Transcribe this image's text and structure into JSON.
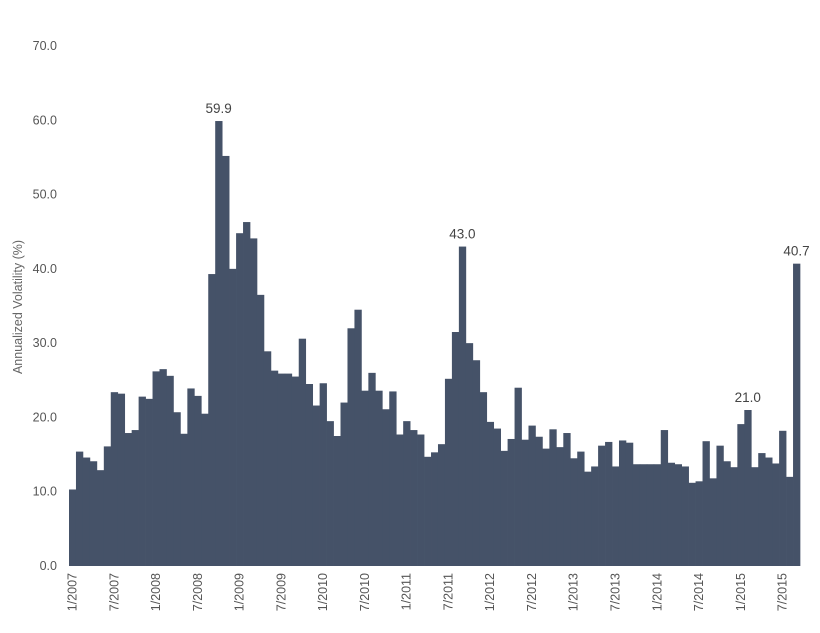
{
  "chart_data": {
    "type": "bar",
    "title": "",
    "xlabel": "",
    "ylabel": "Annualized Volatility (%)",
    "ylim": [
      0,
      70
    ],
    "yticks": [
      "0.0",
      "10.0",
      "20.0",
      "30.0",
      "40.0",
      "50.0",
      "60.0",
      "70.0"
    ],
    "grid": false,
    "legend": "none",
    "bar_color": "#455268",
    "x_start": "1/2007",
    "x_interval": "month",
    "xtick_labels": [
      "1/2007",
      "7/2007",
      "1/2008",
      "7/2008",
      "1/2009",
      "7/2009",
      "1/2010",
      "7/2010",
      "1/2011",
      "7/2011",
      "1/2012",
      "7/2012",
      "1/2013",
      "7/2013",
      "1/2014",
      "7/2014",
      "1/2015",
      "7/2015"
    ],
    "values": [
      10.3,
      15.4,
      14.6,
      14.1,
      12.9,
      16.1,
      23.4,
      23.2,
      17.9,
      18.3,
      22.8,
      22.5,
      26.2,
      26.5,
      25.6,
      20.7,
      17.8,
      23.9,
      22.9,
      20.5,
      39.3,
      59.9,
      55.2,
      40.0,
      44.8,
      46.3,
      44.1,
      36.5,
      28.9,
      26.3,
      25.9,
      25.9,
      25.5,
      30.6,
      24.5,
      21.6,
      24.6,
      19.5,
      17.5,
      22.0,
      32.0,
      34.5,
      23.6,
      26.0,
      23.6,
      21.1,
      23.5,
      17.7,
      19.5,
      18.3,
      17.7,
      14.7,
      15.3,
      16.4,
      25.2,
      31.5,
      43.0,
      30.0,
      27.7,
      23.4,
      19.4,
      18.5,
      15.5,
      17.1,
      24.0,
      17.0,
      18.9,
      17.4,
      15.8,
      18.4,
      16.0,
      17.9,
      14.5,
      15.4,
      12.7,
      13.4,
      16.2,
      16.7,
      13.4,
      16.9,
      16.6,
      13.7,
      13.7,
      13.7,
      13.7,
      18.3,
      13.9,
      13.7,
      13.4,
      11.2,
      11.4,
      16.8,
      11.8,
      16.2,
      14.1,
      13.3,
      19.1,
      21.0,
      13.3,
      15.2,
      14.6,
      13.8,
      18.2,
      12.0,
      40.7
    ],
    "data_labels": [
      {
        "index": 21,
        "text": "59.9"
      },
      {
        "index": 56,
        "text": "43.0"
      },
      {
        "index": 97,
        "text": "21.0"
      },
      {
        "index": 104,
        "text": "40.7"
      }
    ]
  }
}
